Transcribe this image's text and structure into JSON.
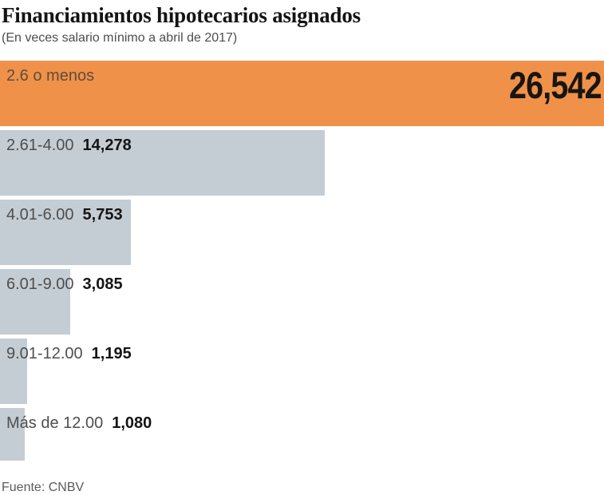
{
  "chart_data": {
    "type": "bar",
    "orientation": "horizontal",
    "title": "Financiamientos hipotecarios asignados",
    "subtitle": "(En veces salario mínimo a abril de 2017)",
    "categories": [
      "2.6 o menos",
      "2.61-4.00",
      "4.01-6.00",
      "6.01-9.00",
      "9.01-12.00",
      "Más de 12.00"
    ],
    "values": [
      26542,
      14278,
      5753,
      3085,
      1195,
      1080
    ],
    "value_labels": [
      "26,542",
      "14,278",
      "5,753",
      "3,085",
      "1,195",
      "1,080"
    ],
    "xlim": [
      0,
      26542
    ],
    "legend": "none",
    "grid": false,
    "bar_colors": [
      "#F0914A",
      "#C4CDD3",
      "#C4CDD3",
      "#C4CDD3",
      "#C4CDD3",
      "#C4CDD3"
    ],
    "highlight_color": "#F0914A",
    "base_bar_color": "#C4CDD3",
    "source": "Fuente: CNBV"
  }
}
